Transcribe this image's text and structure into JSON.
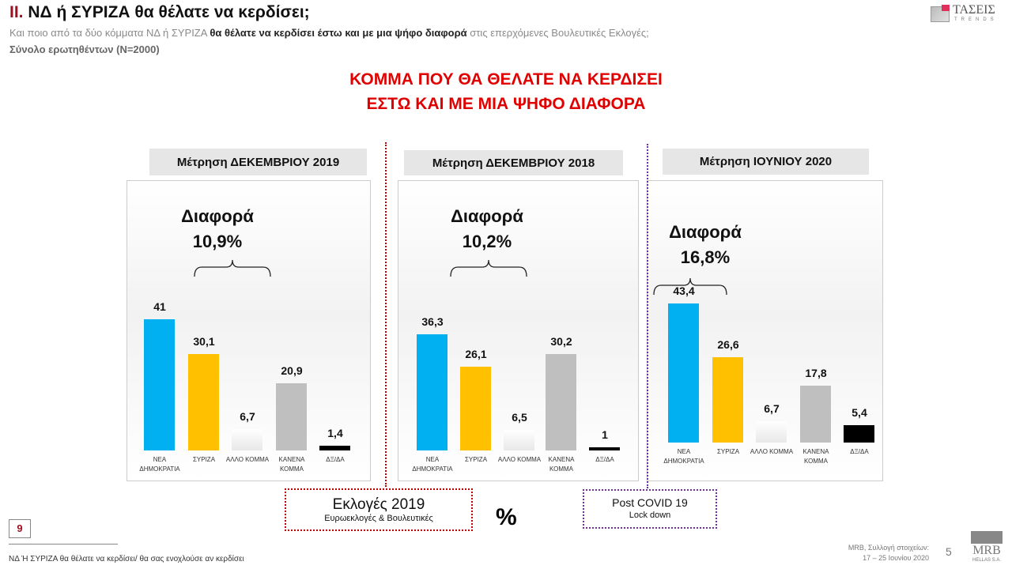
{
  "header": {
    "section_num": "II.",
    "title": "ΝΔ  ή ΣΥΡΙΖΑ θα θέλατε να κερδίσει;",
    "subtitle_pre": "Και ποιο από τα δύο κόμματα ΝΔ ή ΣΥΡΙΖΑ ",
    "subtitle_bold": "θα θέλατε να κερδίσει έστω και με μια ψήφο διαφορά",
    "subtitle_post": " στις επερχόμενες Βουλευτικές Εκλογές;",
    "base": "Σύνολο ερωτηθέντων (Ν=2000)",
    "logo": "ΤΑΣΕΙΣ TRENDS"
  },
  "main_title_line1": "ΚΟΜΜΑ ΠΟΥ ΘΑ ΘΕΛΑΤΕ ΝΑ ΚΕΡΔΙΣΕΙ",
  "main_title_line2": "ΕΣΤΩ ΚΑΙ ΜΕ ΜΙΑ ΨΗΦΟ ΔΙΑΦΟΡΑ",
  "colors": {
    "ND": "#00b0f0",
    "SYRIZA": "#ffc000",
    "ALLO": "#f4f4f4",
    "KANENA": "#bfbfbf",
    "DXDA": "#000000"
  },
  "chart_data": [
    {
      "type": "bar",
      "title": "Μέτρηση ΔΕΚΕΜΒΡΙΟΥ 2019",
      "diff_label": "Διαφορά",
      "diff_value": "10,9%",
      "categories": [
        "ΝΕΑ ΔΗΜΟΚΡΑΤΙΑ",
        "ΣΥΡΙΖΑ",
        "ΑΛΛΟ ΚΟΜΜΑ",
        "ΚΑΝΕΝΑ ΚΟΜΜΑ",
        "ΔΞ/ΔΑ"
      ],
      "values": [
        41,
        30.1,
        6.7,
        20.9,
        1.4
      ],
      "labels": [
        "41",
        "30,1",
        "6,7",
        "20,9",
        "1,4"
      ]
    },
    {
      "type": "bar",
      "title": "Μέτρηση ΔΕΚΕΜΒΡΙΟΥ 2018",
      "diff_label": "Διαφορά",
      "diff_value": "10,2%",
      "categories": [
        "ΝΕΑ ΔΗΜΟΚΡΑΤΙΑ",
        "ΣΥΡΙΖΑ",
        "ΑΛΛΟ ΚΟΜΜΑ",
        "ΚΑΝΕΝΑ ΚΟΜΜΑ",
        "ΔΞ/ΔΑ"
      ],
      "values": [
        36.3,
        26.1,
        6.5,
        30.2,
        1
      ],
      "labels": [
        "36,3",
        "26,1",
        "6,5",
        "30,2",
        "1"
      ]
    },
    {
      "type": "bar",
      "title": "Μέτρηση ΙΟΥΝΙΟΥ 2020",
      "diff_label": "Διαφορά",
      "diff_value": "16,8%",
      "categories": [
        "ΝΕΑ ΔΗΜΟΚΡΑΤΙΑ",
        "ΣΥΡΙΖΑ",
        "ΑΛΛΟ ΚΟΜΜΑ",
        "ΚΑΝΕΝΑ ΚΟΜΜΑ",
        "ΔΞ/ΔΑ"
      ],
      "values": [
        43.4,
        26.6,
        6.7,
        17.8,
        5.4
      ],
      "labels": [
        "43,4",
        "26,6",
        "6,7",
        "17,8",
        "5,4"
      ]
    }
  ],
  "notes": {
    "elections_title": "Εκλογές 2019",
    "elections_sub": "Ευρωεκλογές & Βουλευτικές",
    "percent": "%",
    "covid_title": "Post  COVID 19",
    "covid_sub": "Lock down"
  },
  "footer": {
    "page_box": "9",
    "question": "ΝΔ Ή ΣΥΡΙΖΑ θα θέλατε να κερδίσει/ θα σας ενοχλούσε αν κερδίσει",
    "source_line1": "MRB, Συλλογή στοιχείων:",
    "source_line2": "17 – 25 Ιουνίου 2020",
    "page_num": "5",
    "mrb_logo": "MRB HELLAS S.A."
  }
}
